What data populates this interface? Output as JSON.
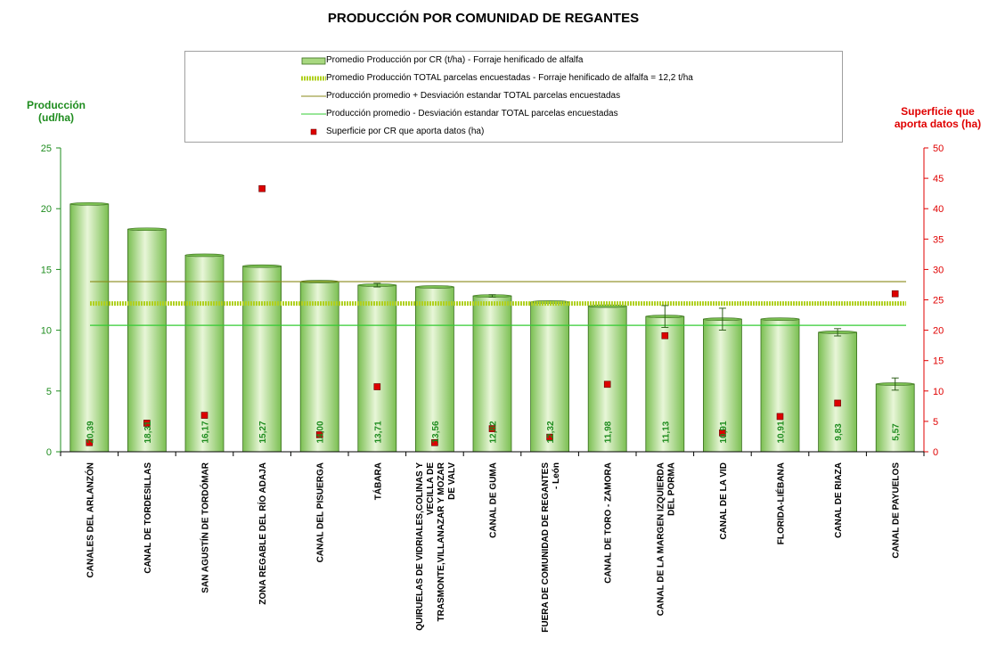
{
  "title": "PRODUCCIÓN POR COMUNIDAD DE REGANTES",
  "y1_title_lines": [
    "Producción",
    "(ud/ha)"
  ],
  "y2_title_lines": [
    "Superficie que",
    "aporta datos (ha)"
  ],
  "legend": [
    {
      "label": "Promedio Producción por CR (t/ha) - Forraje henificado de alfalfa",
      "kind": "bar",
      "color": "#a8d880"
    },
    {
      "label": "Promedio Producción TOTAL parcelas encuestadas - Forraje henificado de alfalfa = 12,2 t/ha",
      "kind": "thick-line",
      "color": "#b0d020"
    },
    {
      "label": "Producción promedio + Desviación estandar TOTAL parcelas encuestadas",
      "kind": "line",
      "color": "#8a8a1a"
    },
    {
      "label": "Producción promedio - Desviación estandar TOTAL parcelas encuestadas",
      "kind": "line",
      "color": "#33cc33"
    },
    {
      "label": "Superficie por CR que aporta datos (ha)",
      "kind": "marker",
      "color": "#dd0000"
    }
  ],
  "chart_data": {
    "type": "bar",
    "title": "PRODUCCIÓN POR COMUNIDAD DE REGANTES",
    "ylabel": "Producción (ud/ha)",
    "y2label": "Superficie que aporta datos (ha)",
    "ylim": [
      0,
      25
    ],
    "y2lim": [
      0,
      50
    ],
    "yticks": [
      0,
      5,
      10,
      15,
      20,
      25
    ],
    "y2ticks": [
      0,
      5,
      10,
      15,
      20,
      25,
      30,
      35,
      40,
      45,
      50
    ],
    "categories": [
      [
        "CANALES DEL ARLANZÓN"
      ],
      [
        "CANAL DE TORDESILLAS"
      ],
      [
        "SAN AGUSTÍN DE TORDÓMAR"
      ],
      [
        "ZONA REGABLE DEL RÍO ADAJA"
      ],
      [
        "CANAL DEL PISUERGA"
      ],
      [
        "TÁBARA"
      ],
      [
        "QUIRUELAS DE VIDRIALES,COLINAS Y",
        "VECILLA DE",
        "TRASMONTE,VILLANAZAR Y MOZAR",
        "DE VALV"
      ],
      [
        "CANAL DE GUMA"
      ],
      [
        "FUERA DE COMUNIDAD DE REGANTES",
        "- León"
      ],
      [
        "CANAL DE TORO - ZAMORA"
      ],
      [
        "CANAL DE LA MARGEN IZQUIERDA",
        "DEL PORMA"
      ],
      [
        "CANAL DE LA VID"
      ],
      [
        "FLORIDA-LIÉBANA"
      ],
      [
        "CANAL DE RIAZA"
      ],
      [
        "CANAL DE PAYUELOS"
      ]
    ],
    "series": [
      {
        "name": "Promedio Producción por CR (t/ha) - Forraje henificado de alfalfa",
        "values": [
          20.39,
          18.31,
          16.17,
          15.27,
          14.0,
          13.71,
          13.56,
          12.82,
          12.32,
          11.98,
          11.13,
          10.91,
          10.91,
          9.83,
          5.57
        ],
        "labels": [
          "20,39",
          "18,31",
          "16,17",
          "15,27",
          "14,00",
          "13,71",
          "13,56",
          "12,82",
          "12,32",
          "11,98",
          "11,13",
          "10,91",
          "10,91",
          "9,83",
          "5,57"
        ],
        "error": [
          0,
          0,
          0,
          0,
          0,
          0.15,
          0,
          0.1,
          0,
          0,
          0.9,
          0.9,
          0,
          0.3,
          0.5
        ]
      },
      {
        "name": "Superficie por CR que aporta datos (ha)",
        "axis": "secondary",
        "values": [
          1.5,
          4.7,
          6.0,
          43.3,
          2.8,
          10.7,
          1.5,
          3.8,
          2.4,
          11.1,
          19.1,
          3.1,
          5.8,
          8.0,
          26.0
        ]
      }
    ],
    "reference_lines": [
      {
        "name": "Promedio Producción TOTAL parcelas encuestadas - Forraje henificado de alfalfa = 12,2 t/ha",
        "value": 12.2
      },
      {
        "name": "Producción promedio + Desviación estandar TOTAL parcelas encuestadas",
        "value": 14.0
      },
      {
        "name": "Producción promedio - Desviación estandar TOTAL parcelas encuestadas",
        "value": 10.4
      }
    ],
    "grid": false,
    "legend_position": "top"
  },
  "colors": {
    "bar_fill_light": "#e8f6d8",
    "bar_fill_mid": "#a8d880",
    "bar_fill_dark": "#7bbf52",
    "bar_stroke": "#3a6e1e",
    "bar_label": "#1e8c1e",
    "y1_axis": "#1e8c1e",
    "y2_axis": "#e00000",
    "avg_line": "#b0d020",
    "plus_sd": "#8a8a1a",
    "minus_sd": "#33cc33",
    "marker": "#dd0000"
  }
}
